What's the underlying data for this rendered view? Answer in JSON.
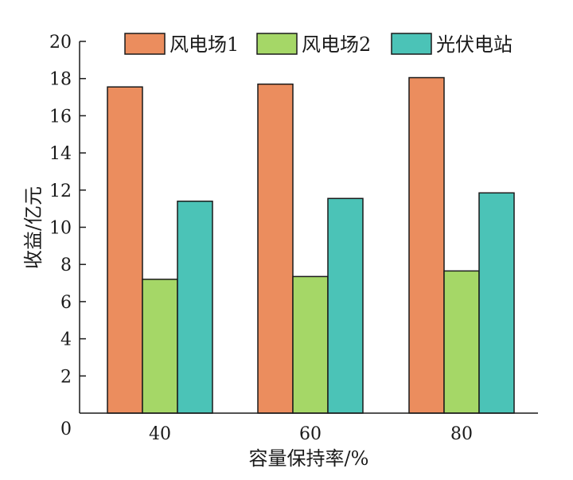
{
  "chart_data": {
    "type": "bar",
    "categories": [
      "40",
      "60",
      "80"
    ],
    "series": [
      {
        "name": "风电场1",
        "values": [
          17.55,
          17.7,
          18.05
        ],
        "color": "#EB8D5E"
      },
      {
        "name": "风电场2",
        "values": [
          7.2,
          7.35,
          7.65
        ],
        "color": "#A5D767"
      },
      {
        "name": "光伏电站",
        "values": [
          11.4,
          11.55,
          11.85
        ],
        "color": "#4BC3B7"
      }
    ],
    "xlabel": "容量保持率/%",
    "ylabel": "收益/亿元",
    "ylim": [
      0,
      20
    ],
    "yticks": [
      0,
      2,
      4,
      6,
      8,
      10,
      12,
      14,
      16,
      18,
      20
    ],
    "legend": "top",
    "grid": false
  }
}
